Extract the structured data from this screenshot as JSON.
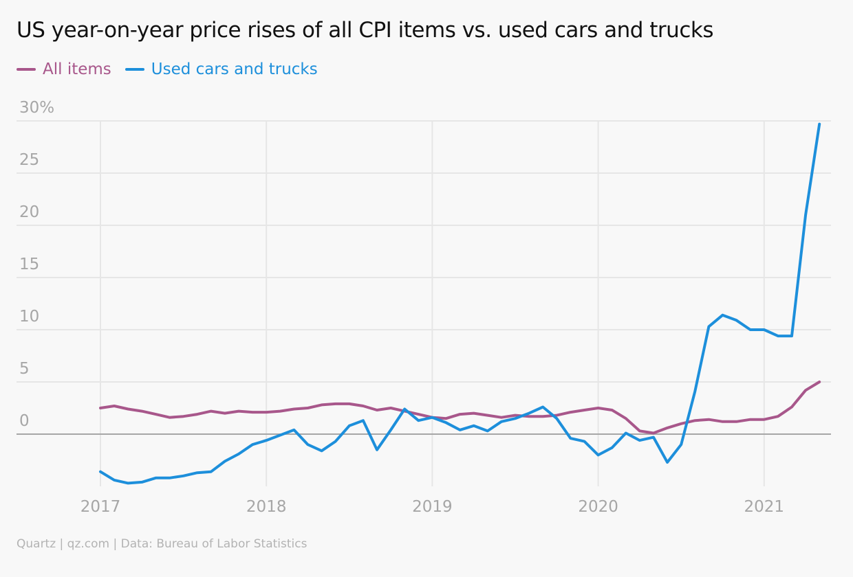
{
  "chart_data": {
    "type": "line",
    "title": "US year-on-year price rises of all CPI items vs. used cars and trucks",
    "xlabel": "",
    "ylabel": "",
    "ylim": [
      -5,
      30
    ],
    "y_ticks": [
      0,
      5,
      10,
      15,
      20,
      25,
      30
    ],
    "y_tick_labels": [
      "0",
      "5",
      "10",
      "15",
      "20",
      "25",
      "30%"
    ],
    "x_ticks": [
      "2017",
      "2018",
      "2019",
      "2020",
      "2021"
    ],
    "x_start": "2017-01",
    "x_frequency": "monthly",
    "grid": true,
    "legend_position": "top-left",
    "series": [
      {
        "name": "All items",
        "color": "#a8578b",
        "values": [
          2.5,
          2.7,
          2.4,
          2.2,
          1.9,
          1.6,
          1.7,
          1.9,
          2.2,
          2.0,
          2.2,
          2.1,
          2.1,
          2.2,
          2.4,
          2.5,
          2.8,
          2.9,
          2.9,
          2.7,
          2.3,
          2.5,
          2.2,
          1.9,
          1.6,
          1.5,
          1.9,
          2.0,
          1.8,
          1.6,
          1.8,
          1.7,
          1.7,
          1.8,
          2.1,
          2.3,
          2.5,
          2.3,
          1.5,
          0.3,
          0.1,
          0.6,
          1.0,
          1.3,
          1.4,
          1.2,
          1.2,
          1.4,
          1.4,
          1.7,
          2.6,
          4.2,
          5.0
        ]
      },
      {
        "name": "Used cars and trucks",
        "color": "#1d8fdb",
        "values": [
          -3.6,
          -4.4,
          -4.7,
          -4.6,
          -4.2,
          -4.2,
          -4.0,
          -3.7,
          -3.6,
          -2.6,
          -1.9,
          -1.0,
          -0.6,
          -0.1,
          0.4,
          -1.0,
          -1.6,
          -0.7,
          0.8,
          1.3,
          -1.5,
          0.4,
          2.4,
          1.3,
          1.6,
          1.1,
          0.4,
          0.8,
          0.3,
          1.2,
          1.5,
          2.0,
          2.6,
          1.5,
          -0.4,
          -0.7,
          -2.0,
          -1.3,
          0.1,
          -0.6,
          -0.3,
          -2.7,
          -1.0,
          4.1,
          10.3,
          11.4,
          10.9,
          10.0,
          10.0,
          9.4,
          9.4,
          21.0,
          29.7
        ]
      }
    ]
  },
  "source": "Quartz | qz.com | Data: Bureau of Labor Statistics"
}
